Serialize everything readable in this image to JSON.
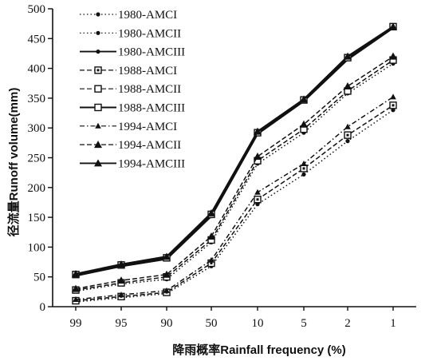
{
  "chart_data": {
    "type": "line",
    "title": "",
    "xlabel": "降雨概率Rainfall frequency (%)",
    "ylabel": "径流量Runoff volume(mm)",
    "categories": [
      "99",
      "95",
      "90",
      "50",
      "10",
      "5",
      "2",
      "1"
    ],
    "yticks": [
      "0",
      "50",
      "100",
      "150",
      "200",
      "250",
      "300",
      "350",
      "400",
      "450",
      "500"
    ],
    "ylim": [
      0,
      500
    ],
    "grid": false,
    "legend_position": "top-left",
    "series": [
      {
        "name": "1980-AMCI",
        "line": "dotted",
        "marker": "dot",
        "values": [
          8,
          15,
          22,
          68,
          172,
          222,
          278,
          330
        ]
      },
      {
        "name": "1980-AMCII",
        "line": "dotted",
        "marker": "dot",
        "values": [
          26,
          38,
          46,
          108,
          240,
          292,
          358,
          408
        ]
      },
      {
        "name": "1980-AMCIII",
        "line": "solid",
        "marker": "dot",
        "values": [
          52,
          68,
          80,
          152,
          290,
          345,
          415,
          468
        ]
      },
      {
        "name": "1988-AMCI",
        "line": "dashed",
        "marker": "square-dot",
        "values": [
          10,
          17,
          24,
          73,
          180,
          232,
          288,
          338
        ]
      },
      {
        "name": "1988-AMCII",
        "line": "dashed",
        "marker": "square-open",
        "values": [
          28,
          40,
          50,
          112,
          245,
          298,
          362,
          414
        ]
      },
      {
        "name": "1988-AMCIII",
        "line": "solid",
        "marker": "square-open",
        "values": [
          54,
          70,
          82,
          155,
          292,
          347,
          418,
          470
        ]
      },
      {
        "name": "1994-AMCI",
        "line": "dashdot",
        "marker": "triangle-small",
        "values": [
          12,
          20,
          27,
          78,
          192,
          240,
          302,
          352
        ]
      },
      {
        "name": "1994-AMCII",
        "line": "dashed",
        "marker": "triangle",
        "values": [
          30,
          44,
          54,
          118,
          252,
          306,
          370,
          420
        ]
      },
      {
        "name": "1994-AMCIII",
        "line": "solid",
        "marker": "triangle",
        "values": [
          55,
          71,
          84,
          157,
          294,
          348,
          420,
          470
        ]
      }
    ]
  }
}
